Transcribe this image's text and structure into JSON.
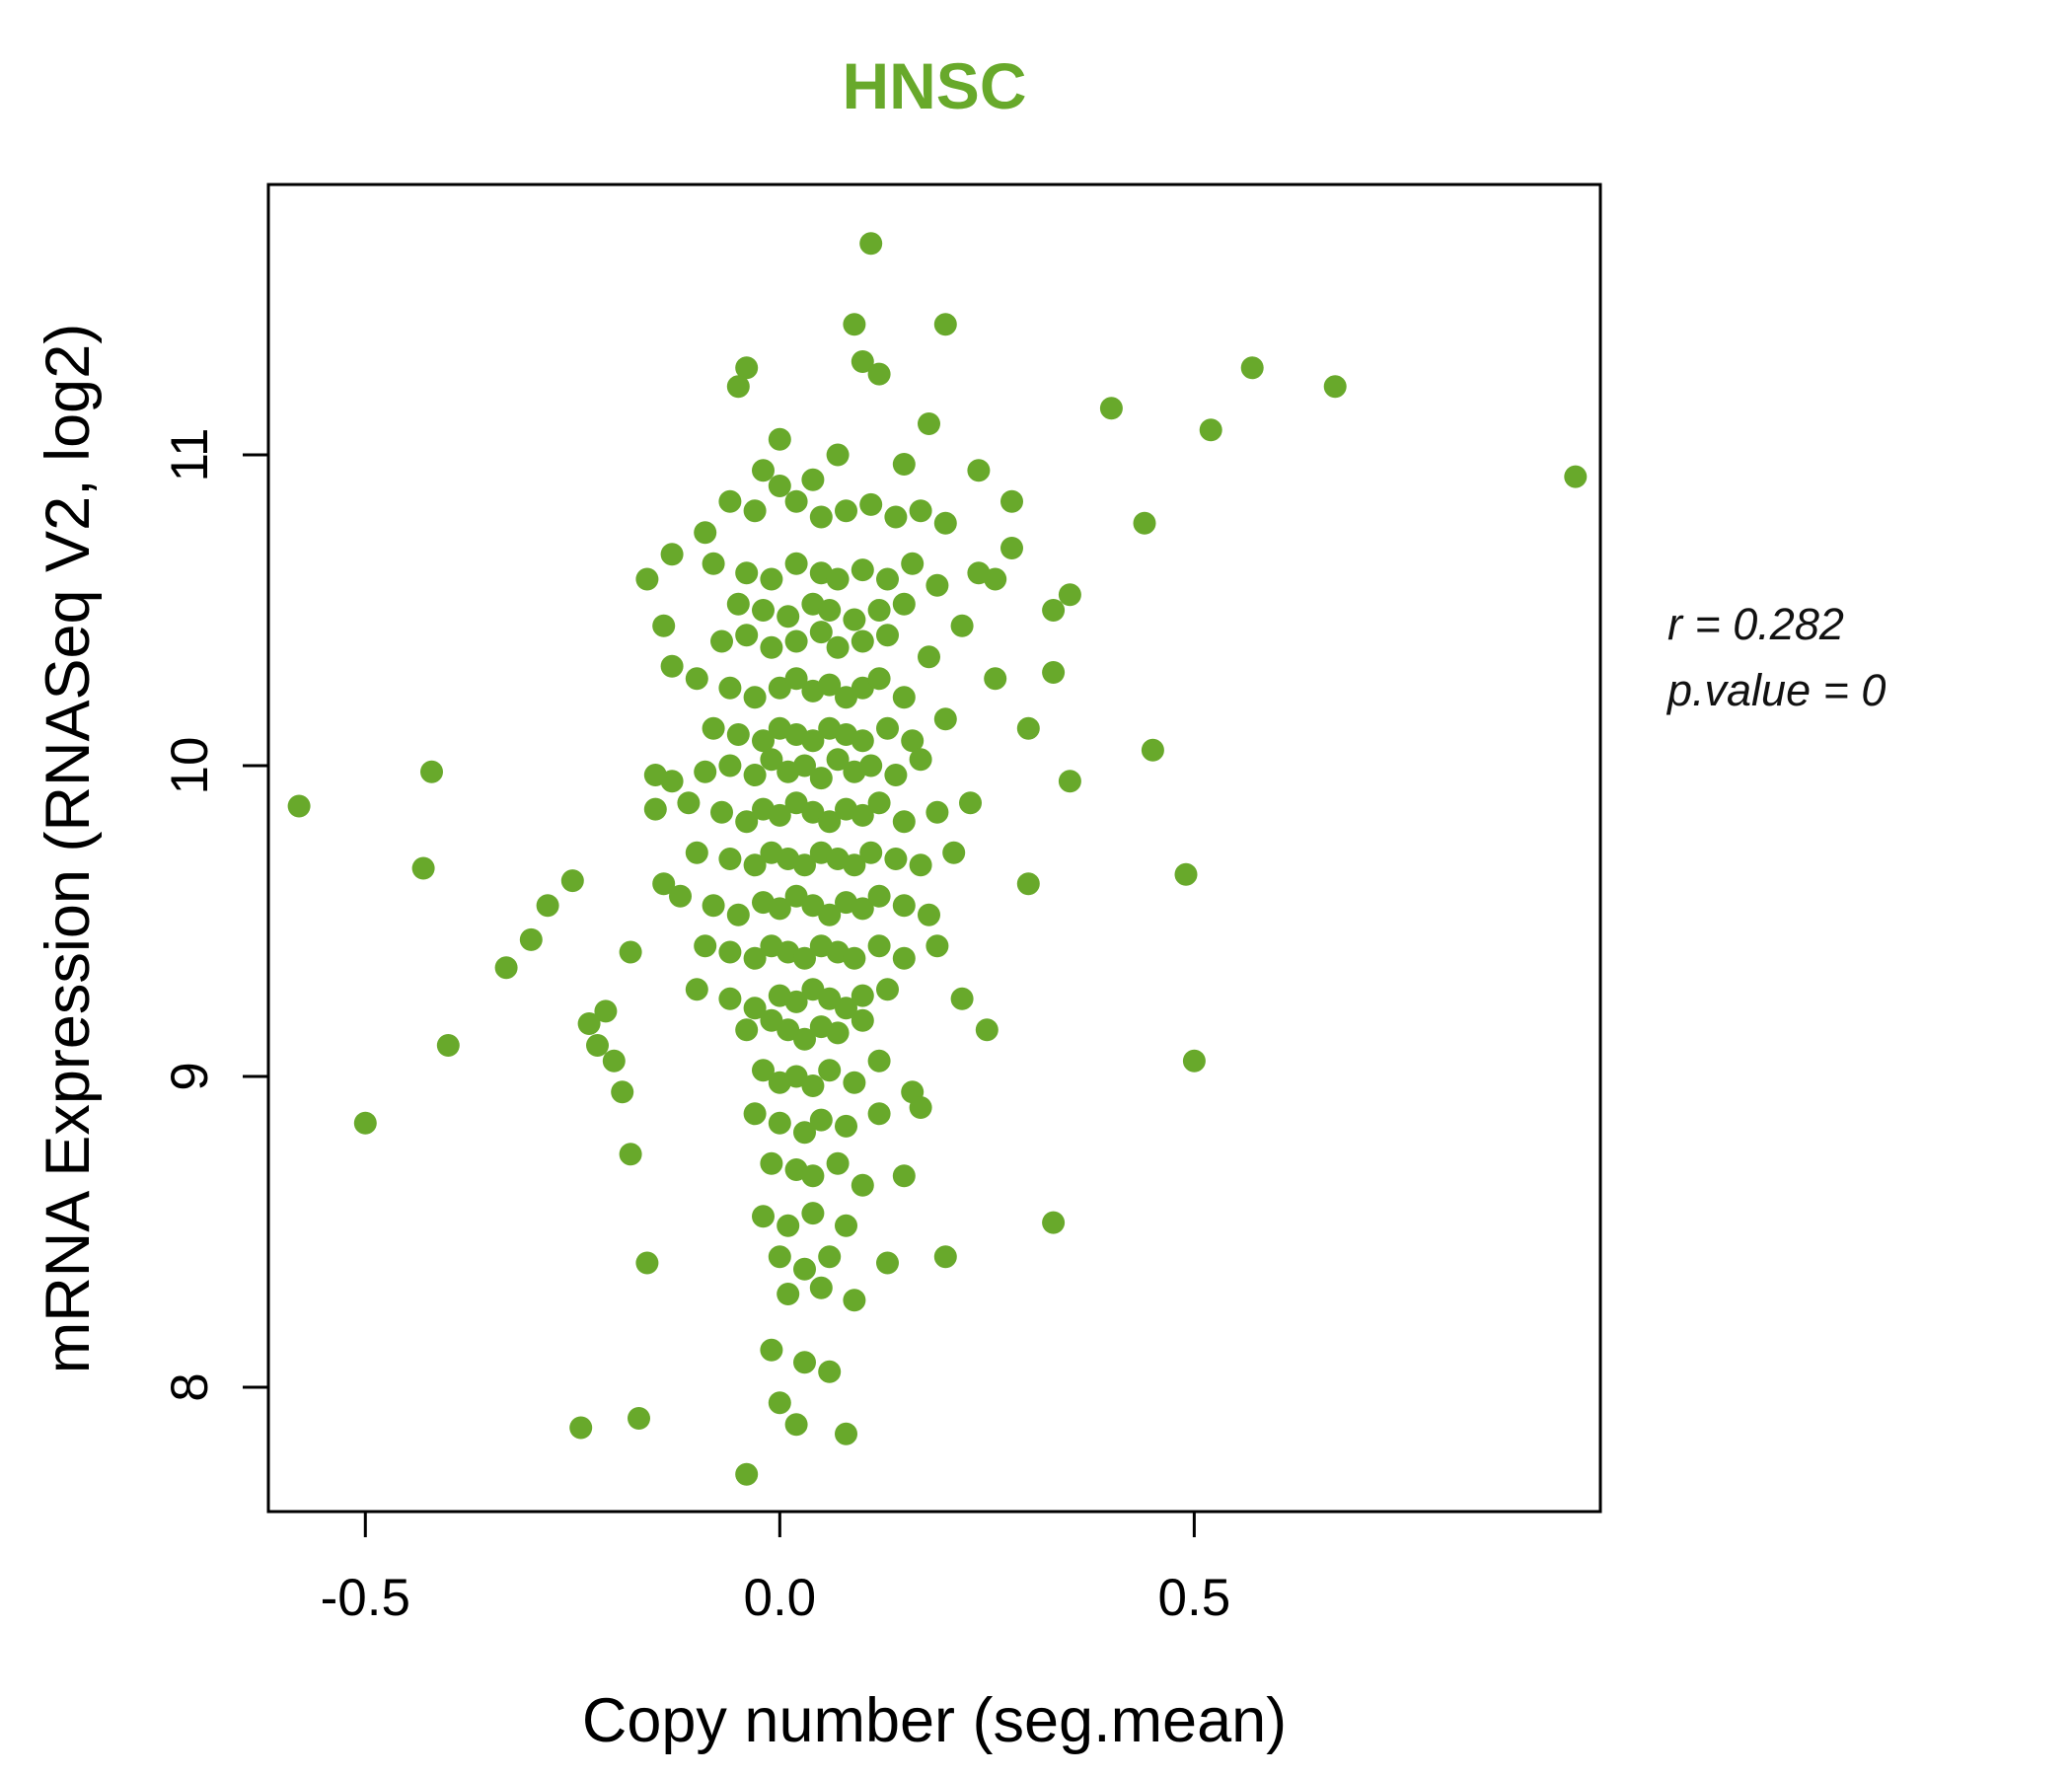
{
  "title": "HNSC",
  "annotation": {
    "line1": "r = 0.282",
    "line2": "p.value = 0"
  },
  "chart_data": {
    "type": "scatter",
    "title": "HNSC",
    "title_color": "#68A92B",
    "point_color": "#68A92B",
    "xlabel": "Copy number (seg.mean)",
    "ylabel": "mRNA Expression (RNASeq V2, log2)",
    "xlim": [
      -0.617,
      0.99
    ],
    "ylim": [
      7.6,
      11.87
    ],
    "grid": false,
    "legend": "none",
    "correlation_r": 0.282,
    "p_value": 0,
    "x_ticks": [
      {
        "value": -0.5,
        "label": "-0.5"
      },
      {
        "value": 0.0,
        "label": "0.0"
      },
      {
        "value": 0.5,
        "label": "0.5"
      }
    ],
    "y_ticks": [
      {
        "value": 8,
        "label": "8"
      },
      {
        "value": 9,
        "label": "9"
      },
      {
        "value": 10,
        "label": "10"
      },
      {
        "value": 11,
        "label": "11"
      }
    ],
    "points": [
      [
        -0.58,
        9.87
      ],
      [
        -0.5,
        8.85
      ],
      [
        -0.43,
        9.67
      ],
      [
        -0.42,
        9.98
      ],
      [
        -0.4,
        9.1
      ],
      [
        -0.33,
        9.35
      ],
      [
        -0.3,
        9.44
      ],
      [
        -0.28,
        9.55
      ],
      [
        -0.25,
        9.63
      ],
      [
        -0.24,
        7.87
      ],
      [
        -0.23,
        9.17
      ],
      [
        -0.22,
        9.1
      ],
      [
        -0.21,
        9.21
      ],
      [
        -0.2,
        9.05
      ],
      [
        -0.19,
        8.95
      ],
      [
        -0.18,
        8.75
      ],
      [
        -0.18,
        9.4
      ],
      [
        -0.17,
        7.9
      ],
      [
        -0.16,
        8.4
      ],
      [
        -0.16,
        10.6
      ],
      [
        -0.15,
        9.86
      ],
      [
        -0.14,
        10.45
      ],
      [
        -0.14,
        9.62
      ],
      [
        -0.13,
        10.32
      ],
      [
        -0.13,
        9.95
      ],
      [
        0.11,
        11.68
      ],
      [
        0.09,
        11.42
      ],
      [
        0.2,
        11.42
      ],
      [
        0.1,
        11.3
      ],
      [
        0.12,
        11.26
      ],
      [
        -0.04,
        11.28
      ],
      [
        -0.05,
        11.22
      ],
      [
        0.57,
        11.28
      ],
      [
        0.67,
        11.22
      ],
      [
        0.4,
        11.15
      ],
      [
        0.52,
        11.08
      ],
      [
        0.96,
        10.93
      ],
      [
        0.44,
        10.78
      ],
      [
        0.35,
        10.55
      ],
      [
        0.33,
        10.5
      ],
      [
        0.28,
        10.85
      ],
      [
        0.26,
        10.6
      ],
      [
        0.24,
        10.95
      ],
      [
        0.28,
        10.7
      ],
      [
        0.33,
        10.3
      ],
      [
        0.35,
        9.95
      ],
      [
        0.45,
        10.05
      ],
      [
        0.49,
        9.65
      ],
      [
        0.5,
        9.05
      ],
      [
        0.3,
        9.62
      ],
      [
        0.33,
        8.53
      ],
      [
        0.18,
        11.1
      ],
      [
        0.0,
        11.05
      ],
      [
        0.07,
        11.0
      ],
      [
        -0.02,
        10.95
      ],
      [
        0.04,
        10.92
      ],
      [
        0.15,
        10.97
      ],
      [
        0.0,
        10.9
      ],
      [
        -0.06,
        10.85
      ],
      [
        -0.03,
        10.82
      ],
      [
        0.02,
        10.85
      ],
      [
        0.05,
        10.8
      ],
      [
        0.08,
        10.82
      ],
      [
        0.11,
        10.84
      ],
      [
        0.14,
        10.8
      ],
      [
        0.17,
        10.82
      ],
      [
        0.2,
        10.78
      ],
      [
        -0.09,
        10.75
      ],
      [
        -0.13,
        10.68
      ],
      [
        -0.08,
        10.65
      ],
      [
        -0.04,
        10.62
      ],
      [
        -0.01,
        10.6
      ],
      [
        0.02,
        10.65
      ],
      [
        0.05,
        10.62
      ],
      [
        0.07,
        10.6
      ],
      [
        0.1,
        10.63
      ],
      [
        0.13,
        10.6
      ],
      [
        0.16,
        10.65
      ],
      [
        0.19,
        10.58
      ],
      [
        0.24,
        10.62
      ],
      [
        -0.05,
        10.52
      ],
      [
        -0.02,
        10.5
      ],
      [
        0.01,
        10.48
      ],
      [
        0.04,
        10.52
      ],
      [
        0.06,
        10.5
      ],
      [
        0.09,
        10.47
      ],
      [
        0.12,
        10.5
      ],
      [
        0.15,
        10.52
      ],
      [
        -0.07,
        10.4
      ],
      [
        -0.04,
        10.42
      ],
      [
        -0.01,
        10.38
      ],
      [
        0.02,
        10.4
      ],
      [
        0.05,
        10.43
      ],
      [
        0.07,
        10.38
      ],
      [
        0.1,
        10.4
      ],
      [
        0.13,
        10.42
      ],
      [
        0.18,
        10.35
      ],
      [
        0.22,
        10.45
      ],
      [
        -0.1,
        10.28
      ],
      [
        -0.06,
        10.25
      ],
      [
        -0.03,
        10.22
      ],
      [
        0.0,
        10.25
      ],
      [
        0.02,
        10.28
      ],
      [
        0.04,
        10.24
      ],
      [
        0.06,
        10.26
      ],
      [
        0.08,
        10.22
      ],
      [
        0.1,
        10.25
      ],
      [
        0.12,
        10.28
      ],
      [
        0.15,
        10.22
      ],
      [
        0.26,
        10.28
      ],
      [
        -0.08,
        10.12
      ],
      [
        -0.05,
        10.1
      ],
      [
        -0.02,
        10.08
      ],
      [
        0.0,
        10.12
      ],
      [
        0.02,
        10.1
      ],
      [
        0.04,
        10.08
      ],
      [
        0.06,
        10.12
      ],
      [
        0.08,
        10.1
      ],
      [
        0.1,
        10.08
      ],
      [
        0.13,
        10.12
      ],
      [
        0.16,
        10.08
      ],
      [
        0.2,
        10.15
      ],
      [
        0.3,
        10.12
      ],
      [
        -0.15,
        9.97
      ],
      [
        -0.09,
        9.98
      ],
      [
        -0.06,
        10.0
      ],
      [
        -0.03,
        9.97
      ],
      [
        -0.01,
        10.02
      ],
      [
        0.01,
        9.98
      ],
      [
        0.03,
        10.0
      ],
      [
        0.05,
        9.96
      ],
      [
        0.07,
        10.02
      ],
      [
        0.09,
        9.98
      ],
      [
        0.11,
        10.0
      ],
      [
        0.14,
        9.97
      ],
      [
        0.17,
        10.02
      ],
      [
        -0.11,
        9.88
      ],
      [
        -0.07,
        9.85
      ],
      [
        -0.04,
        9.82
      ],
      [
        -0.02,
        9.86
      ],
      [
        0.0,
        9.84
      ],
      [
        0.02,
        9.88
      ],
      [
        0.04,
        9.85
      ],
      [
        0.06,
        9.82
      ],
      [
        0.08,
        9.86
      ],
      [
        0.1,
        9.84
      ],
      [
        0.12,
        9.88
      ],
      [
        0.15,
        9.82
      ],
      [
        0.19,
        9.85
      ],
      [
        0.23,
        9.88
      ],
      [
        -0.1,
        9.72
      ],
      [
        -0.06,
        9.7
      ],
      [
        -0.03,
        9.68
      ],
      [
        -0.01,
        9.72
      ],
      [
        0.01,
        9.7
      ],
      [
        0.03,
        9.68
      ],
      [
        0.05,
        9.72
      ],
      [
        0.07,
        9.7
      ],
      [
        0.09,
        9.68
      ],
      [
        0.11,
        9.72
      ],
      [
        0.14,
        9.7
      ],
      [
        0.17,
        9.68
      ],
      [
        0.21,
        9.72
      ],
      [
        -0.12,
        9.58
      ],
      [
        -0.08,
        9.55
      ],
      [
        -0.05,
        9.52
      ],
      [
        -0.02,
        9.56
      ],
      [
        0.0,
        9.54
      ],
      [
        0.02,
        9.58
      ],
      [
        0.04,
        9.55
      ],
      [
        0.06,
        9.52
      ],
      [
        0.08,
        9.56
      ],
      [
        0.1,
        9.54
      ],
      [
        0.12,
        9.58
      ],
      [
        0.15,
        9.55
      ],
      [
        0.18,
        9.52
      ],
      [
        -0.09,
        9.42
      ],
      [
        -0.06,
        9.4
      ],
      [
        -0.03,
        9.38
      ],
      [
        -0.01,
        9.42
      ],
      [
        0.01,
        9.4
      ],
      [
        0.03,
        9.38
      ],
      [
        0.05,
        9.42
      ],
      [
        0.07,
        9.4
      ],
      [
        0.09,
        9.38
      ],
      [
        0.12,
        9.42
      ],
      [
        0.15,
        9.38
      ],
      [
        0.19,
        9.42
      ],
      [
        -0.1,
        9.28
      ],
      [
        -0.06,
        9.25
      ],
      [
        -0.03,
        9.22
      ],
      [
        0.0,
        9.26
      ],
      [
        0.02,
        9.24
      ],
      [
        0.04,
        9.28
      ],
      [
        0.06,
        9.25
      ],
      [
        0.08,
        9.22
      ],
      [
        0.1,
        9.26
      ],
      [
        0.13,
        9.28
      ],
      [
        0.22,
        9.25
      ],
      [
        -0.04,
        9.15
      ],
      [
        -0.01,
        9.18
      ],
      [
        0.01,
        9.15
      ],
      [
        0.03,
        9.12
      ],
      [
        0.05,
        9.16
      ],
      [
        0.07,
        9.14
      ],
      [
        0.1,
        9.18
      ],
      [
        0.25,
        9.15
      ],
      [
        -0.02,
        9.02
      ],
      [
        0.0,
        8.98
      ],
      [
        0.02,
        9.0
      ],
      [
        0.04,
        8.97
      ],
      [
        0.06,
        9.02
      ],
      [
        0.09,
        8.98
      ],
      [
        0.12,
        9.05
      ],
      [
        0.16,
        8.95
      ],
      [
        -0.03,
        8.88
      ],
      [
        0.0,
        8.85
      ],
      [
        0.03,
        8.82
      ],
      [
        0.05,
        8.86
      ],
      [
        0.08,
        8.84
      ],
      [
        0.12,
        8.88
      ],
      [
        0.17,
        8.9
      ],
      [
        -0.01,
        8.72
      ],
      [
        0.02,
        8.7
      ],
      [
        0.04,
        8.68
      ],
      [
        0.07,
        8.72
      ],
      [
        0.1,
        8.65
      ],
      [
        0.15,
        8.68
      ],
      [
        -0.02,
        8.55
      ],
      [
        0.01,
        8.52
      ],
      [
        0.04,
        8.56
      ],
      [
        0.08,
        8.52
      ],
      [
        0.0,
        8.42
      ],
      [
        0.03,
        8.38
      ],
      [
        0.06,
        8.42
      ],
      [
        0.13,
        8.4
      ],
      [
        0.2,
        8.42
      ],
      [
        0.01,
        8.3
      ],
      [
        0.05,
        8.32
      ],
      [
        0.09,
        8.28
      ],
      [
        -0.01,
        8.12
      ],
      [
        0.03,
        8.08
      ],
      [
        0.06,
        8.05
      ],
      [
        0.0,
        7.95
      ],
      [
        0.02,
        7.88
      ],
      [
        0.08,
        7.85
      ],
      [
        -0.04,
        7.72
      ]
    ]
  }
}
